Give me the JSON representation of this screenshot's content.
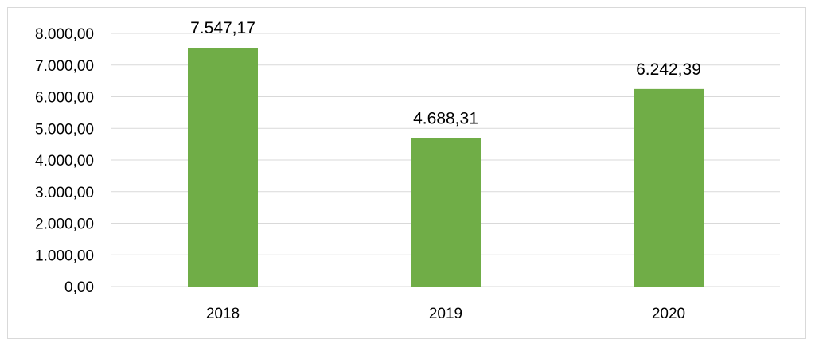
{
  "chart_data": {
    "type": "bar",
    "categories": [
      "2018",
      "2019",
      "2020"
    ],
    "values": [
      7547.17,
      4688.31,
      6242.39
    ],
    "data_labels": [
      "7.547,17",
      "4.688,31",
      "6.242,39"
    ],
    "title": "",
    "xlabel": "",
    "ylabel": "",
    "ylim": [
      0,
      8000
    ],
    "yticks": [
      "0,00",
      "1.000,00",
      "2.000,00",
      "3.000,00",
      "4.000,00",
      "5.000,00",
      "6.000,00",
      "7.000,00",
      "8.000,00"
    ],
    "grid": true,
    "legend": "none",
    "bar_color": "#70ad47",
    "grid_color": "#d9d9d9"
  }
}
